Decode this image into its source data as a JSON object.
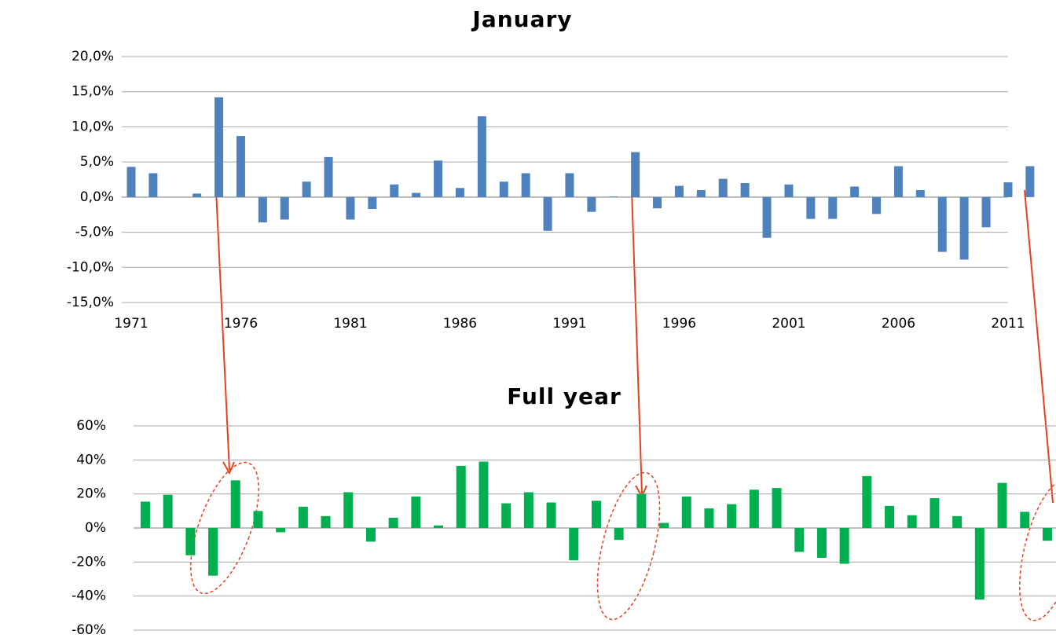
{
  "chart_data": [
    {
      "type": "bar",
      "title": "January",
      "categories": [
        "1971",
        null,
        null,
        null,
        null,
        "1976",
        null,
        null,
        null,
        null,
        "1981",
        null,
        null,
        null,
        null,
        "1986",
        null,
        null,
        null,
        null,
        "1991",
        null,
        null,
        null,
        null,
        "1996",
        null,
        null,
        null,
        null,
        "2001",
        null,
        null,
        null,
        null,
        "2006",
        null,
        null,
        null,
        null,
        "2011",
        null
      ],
      "values": [
        4.3,
        3.4,
        0,
        0.5,
        14.2,
        8.7,
        -3.6,
        -3.2,
        2.2,
        5.7,
        -3.2,
        -1.7,
        1.8,
        0.6,
        5.2,
        1.3,
        11.5,
        2.2,
        3.4,
        -4.8,
        3.4,
        -2.1,
        0.1,
        6.4,
        -1.6,
        1.6,
        1.0,
        2.6,
        2.0,
        -5.8,
        1.8,
        -3.1,
        -3.1,
        1.5,
        -2.4,
        4.4,
        1.0,
        -7.8,
        -8.9,
        -4.3,
        2.1,
        4.4
      ],
      "color": "#4f81bd",
      "ylim": [
        -15,
        20
      ],
      "yticks": [
        {
          "value": -15,
          "label": "-15,0%"
        },
        {
          "value": -10,
          "label": "-10,0%"
        },
        {
          "value": -5,
          "label": "-5,0%"
        },
        {
          "value": 0,
          "label": "0,0%"
        },
        {
          "value": 5,
          "label": "5,0%"
        },
        {
          "value": 10,
          "label": "10,0%"
        },
        {
          "value": 15,
          "label": "15,0%"
        },
        {
          "value": 20,
          "label": "20,0%"
        }
      ],
      "grid": true
    },
    {
      "type": "bar",
      "title": "Full year",
      "categories": [
        null,
        null,
        null,
        null,
        null,
        null,
        null,
        null,
        null,
        null,
        null,
        null,
        null,
        null,
        null,
        null,
        null,
        null,
        null,
        null,
        null,
        null,
        null,
        null,
        null,
        null,
        null,
        null,
        null,
        null,
        null,
        null,
        null,
        null,
        null,
        null,
        null,
        null,
        null,
        null,
        null
      ],
      "values": [
        15.5,
        19.5,
        -16,
        -28,
        28,
        10,
        -2.5,
        12.5,
        7,
        21,
        -8,
        6,
        18.5,
        1.5,
        36.5,
        39,
        14.5,
        21,
        15,
        -19,
        16,
        -7,
        20,
        3,
        18.5,
        11.5,
        14,
        22.5,
        23.5,
        -14,
        -17.5,
        -21,
        30.5,
        13,
        7.5,
        17.5,
        7,
        -42,
        26.5,
        9.5,
        -7.5
      ],
      "color": "#00b050",
      "ylim": [
        -60,
        60
      ],
      "yticks": [
        {
          "value": -60,
          "label": "-60%"
        },
        {
          "value": -40,
          "label": "-40%"
        },
        {
          "value": -20,
          "label": "-20%"
        },
        {
          "value": 0,
          "label": "0%"
        },
        {
          "value": 20,
          "label": "20%"
        },
        {
          "value": 40,
          "label": "40%"
        },
        {
          "value": 60,
          "label": "60%"
        }
      ],
      "grid": true
    }
  ]
}
